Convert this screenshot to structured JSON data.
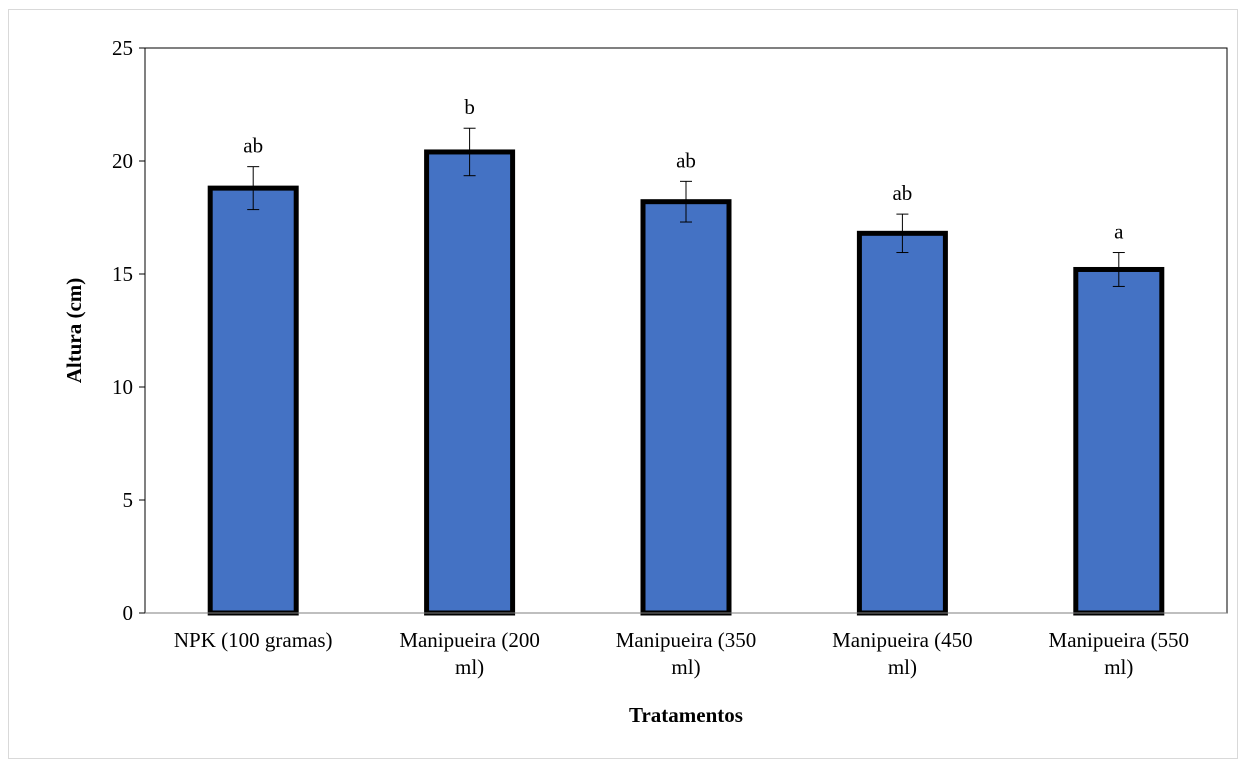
{
  "chart_data": {
    "type": "bar",
    "title": "",
    "xlabel": "Tratamentos",
    "ylabel": "Altura (cm)",
    "ylim": [
      0,
      25
    ],
    "yticks": [
      0,
      5,
      10,
      15,
      20,
      25
    ],
    "grid": false,
    "legend": "none",
    "categories": [
      [
        "NPK (100 gramas)"
      ],
      [
        "Manipueira (200",
        "ml)"
      ],
      [
        "Manipueira (350",
        "ml)"
      ],
      [
        "Manipueira (450",
        "ml)"
      ],
      [
        "Manipueira (550",
        "ml)"
      ]
    ],
    "values": [
      18.8,
      20.4,
      18.2,
      16.8,
      15.2
    ],
    "errors": [
      0.95,
      1.05,
      0.9,
      0.85,
      0.75
    ],
    "significance_labels": [
      "ab",
      "b",
      "ab",
      "ab",
      "a"
    ],
    "colors": {
      "bar_fill": "#4472C4",
      "bar_edge": "#000000",
      "axis": "#000000"
    }
  }
}
